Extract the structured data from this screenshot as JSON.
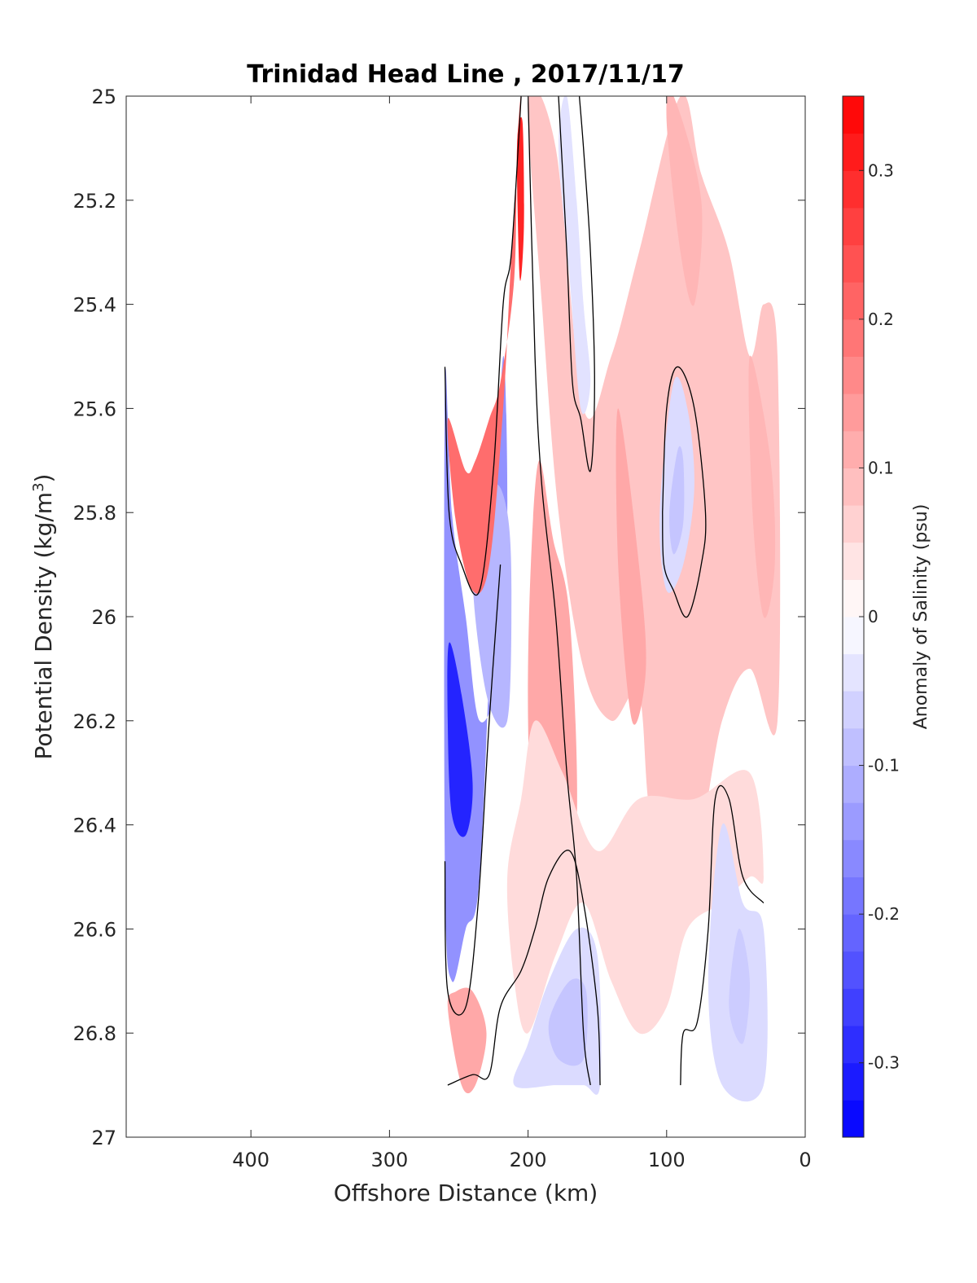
{
  "chart_data": {
    "type": "contour",
    "title": "Trinidad Head Line , 2017/11/17",
    "xlabel": "Offshore Distance (km)",
    "ylabel_main": "Potential Density (kg/m",
    "ylabel_sup": "3",
    "ylabel_end": ")",
    "xlim": [
      490,
      0
    ],
    "ylim": [
      25,
      27
    ],
    "x_reversed": true,
    "y_reversed": true,
    "xticks": [
      400,
      300,
      200,
      100,
      0
    ],
    "yticks": [
      25,
      25.2,
      25.4,
      25.6,
      25.8,
      26,
      26.2,
      26.4,
      26.6,
      26.8,
      27
    ],
    "colorbar": {
      "label": "Anomaly of Salinity (psu)",
      "range": [
        -0.35,
        0.35
      ],
      "step": 0.025,
      "ticks": [
        0.3,
        0.2,
        0.1,
        0,
        -0.1,
        -0.2,
        -0.3
      ],
      "tick_labels": [
        "0.3",
        "0.2",
        "0.1",
        "0",
        "-0.1",
        "-0.2",
        "-0.3"
      ],
      "colormap": "blue-white-red"
    },
    "stations_km": [
      260,
      250,
      240,
      230,
      220,
      210,
      200,
      190,
      180,
      170,
      160,
      150,
      140,
      130,
      120,
      110,
      100,
      90,
      80,
      70,
      60,
      50,
      40,
      30,
      20
    ],
    "regions": [
      {
        "value": -0.15,
        "points": [
          [
            260,
            25.55
          ],
          [
            255,
            25.8
          ],
          [
            245,
            26.0
          ],
          [
            235,
            26.2
          ],
          [
            220,
            26.1
          ],
          [
            215,
            25.8
          ],
          [
            218,
            25.5
          ],
          [
            225,
            25.9
          ],
          [
            235,
            26.5
          ],
          [
            245,
            26.6
          ],
          [
            255,
            26.7
          ],
          [
            260,
            26.5
          ]
        ]
      },
      {
        "value": -0.3,
        "points": [
          [
            257,
            26.05
          ],
          [
            248,
            26.15
          ],
          [
            240,
            26.32
          ],
          [
            245,
            26.42
          ],
          [
            255,
            26.38
          ],
          [
            258,
            26.2
          ]
        ]
      },
      {
        "value": -0.1,
        "points": [
          [
            240,
            25.9
          ],
          [
            230,
            26.15
          ],
          [
            215,
            26.2
          ],
          [
            212,
            25.95
          ],
          [
            215,
            25.8
          ],
          [
            225,
            25.75
          ]
        ]
      },
      {
        "value": 0.2,
        "points": [
          [
            258,
            25.62
          ],
          [
            245,
            25.72
          ],
          [
            238,
            25.7
          ],
          [
            228,
            25.62
          ],
          [
            220,
            25.55
          ],
          [
            210,
            25.35
          ],
          [
            208,
            25.1
          ],
          [
            205,
            25.0
          ],
          [
            212,
            25.3
          ],
          [
            218,
            25.6
          ],
          [
            228,
            25.9
          ],
          [
            240,
            25.95
          ],
          [
            252,
            25.82
          ]
        ]
      },
      {
        "value": 0.3,
        "points": [
          [
            208,
            25.1
          ],
          [
            206,
            25.35
          ],
          [
            203,
            25.25
          ],
          [
            204,
            25.05
          ]
        ]
      },
      {
        "value": 0.08,
        "points": [
          [
            200,
            25.0
          ],
          [
            190,
            25.4
          ],
          [
            178,
            25.8
          ],
          [
            160,
            26.1
          ],
          [
            140,
            26.2
          ],
          [
            120,
            26.15
          ],
          [
            110,
            26.4
          ],
          [
            80,
            26.45
          ],
          [
            60,
            26.2
          ],
          [
            40,
            26.1
          ],
          [
            20,
            26.2
          ],
          [
            20,
            25.5
          ],
          [
            30,
            25.4
          ],
          [
            40,
            25.5
          ],
          [
            55,
            25.3
          ],
          [
            75,
            25.15
          ],
          [
            90,
            25.0
          ],
          [
            120,
            25.3
          ],
          [
            140,
            25.5
          ],
          [
            160,
            25.6
          ],
          [
            180,
            25.1
          ]
        ]
      },
      {
        "value": 0.12,
        "points": [
          [
            192,
            25.7
          ],
          [
            182,
            25.85
          ],
          [
            170,
            26.0
          ],
          [
            165,
            26.4
          ],
          [
            180,
            26.55
          ],
          [
            195,
            26.5
          ],
          [
            200,
            26.2
          ],
          [
            198,
            25.9
          ]
        ]
      },
      {
        "value": 0.1,
        "points": [
          [
            95,
            25.0
          ],
          [
            75,
            25.2
          ],
          [
            80,
            25.4
          ],
          [
            90,
            25.3
          ],
          [
            100,
            25.05
          ]
        ]
      },
      {
        "value": 0.1,
        "points": [
          [
            40,
            25.5
          ],
          [
            25,
            25.7
          ],
          [
            22,
            25.9
          ],
          [
            30,
            26.0
          ],
          [
            38,
            25.8
          ]
        ]
      },
      {
        "value": 0.12,
        "points": [
          [
            135,
            25.6
          ],
          [
            120,
            25.9
          ],
          [
            115,
            26.1
          ],
          [
            125,
            26.2
          ],
          [
            135,
            25.9
          ]
        ]
      },
      {
        "value": 0.05,
        "points": [
          [
            215,
            26.5
          ],
          [
            210,
            26.7
          ],
          [
            200,
            26.8
          ],
          [
            180,
            26.65
          ],
          [
            160,
            26.55
          ],
          [
            140,
            26.7
          ],
          [
            120,
            26.8
          ],
          [
            100,
            26.75
          ],
          [
            85,
            26.6
          ],
          [
            60,
            26.55
          ],
          [
            40,
            26.5
          ],
          [
            30,
            26.5
          ],
          [
            40,
            26.3
          ],
          [
            80,
            26.35
          ],
          [
            120,
            26.35
          ],
          [
            150,
            26.45
          ],
          [
            175,
            26.3
          ],
          [
            195,
            26.2
          ],
          [
            205,
            26.35
          ]
        ]
      },
      {
        "value": 0.12,
        "points": [
          [
            258,
            26.75
          ],
          [
            248,
            26.9
          ],
          [
            238,
            26.9
          ],
          [
            230,
            26.8
          ],
          [
            240,
            26.72
          ],
          [
            252,
            26.72
          ]
        ]
      },
      {
        "value": -0.05,
        "points": [
          [
            200,
            26.82
          ],
          [
            185,
            26.7
          ],
          [
            165,
            26.6
          ],
          [
            150,
            26.65
          ],
          [
            148,
            26.9
          ],
          [
            160,
            26.9
          ],
          [
            180,
            26.9
          ],
          [
            210,
            26.9
          ]
        ]
      },
      {
        "value": -0.08,
        "points": [
          [
            185,
            26.78
          ],
          [
            170,
            26.7
          ],
          [
            158,
            26.72
          ],
          [
            160,
            26.85
          ],
          [
            178,
            26.85
          ]
        ]
      },
      {
        "value": -0.05,
        "points": [
          [
            60,
            26.4
          ],
          [
            45,
            26.55
          ],
          [
            30,
            26.6
          ],
          [
            30,
            26.9
          ],
          [
            60,
            26.9
          ],
          [
            70,
            26.7
          ]
        ]
      },
      {
        "value": -0.07,
        "points": [
          [
            48,
            26.6
          ],
          [
            40,
            26.7
          ],
          [
            45,
            26.82
          ],
          [
            55,
            26.75
          ]
        ]
      },
      {
        "value": -0.05,
        "points": [
          [
            95,
            25.55
          ],
          [
            105,
            25.8
          ],
          [
            100,
            25.95
          ],
          [
            88,
            25.9
          ],
          [
            80,
            25.75
          ],
          [
            85,
            25.6
          ]
        ]
      },
      {
        "value": -0.08,
        "points": [
          [
            92,
            25.68
          ],
          [
            98,
            25.8
          ],
          [
            95,
            25.88
          ],
          [
            88,
            25.82
          ],
          [
            88,
            25.7
          ]
        ]
      },
      {
        "value": -0.04,
        "points": [
          [
            172,
            25.0
          ],
          [
            165,
            25.2
          ],
          [
            160,
            25.4
          ],
          [
            155,
            25.55
          ],
          [
            162,
            25.6
          ],
          [
            170,
            25.35
          ],
          [
            178,
            25.1
          ]
        ]
      }
    ],
    "zero_contours": [
      [
        [
          260,
          25.52
        ],
        [
          257,
          25.8
        ],
        [
          248,
          25.9
        ],
        [
          235,
          25.95
        ],
        [
          225,
          25.72
        ],
        [
          218,
          25.4
        ],
        [
          212,
          25.3
        ],
        [
          205,
          25.0
        ]
      ],
      [
        [
          200,
          25.0
        ],
        [
          195,
          25.5
        ],
        [
          190,
          25.75
        ],
        [
          180,
          26.0
        ],
        [
          172,
          26.3
        ],
        [
          165,
          26.5
        ],
        [
          160,
          26.8
        ],
        [
          155,
          26.9
        ]
      ],
      [
        [
          178,
          25.0
        ],
        [
          172,
          25.3
        ],
        [
          168,
          25.55
        ],
        [
          162,
          25.62
        ],
        [
          155,
          25.72
        ],
        [
          152,
          25.55
        ],
        [
          155,
          25.3
        ],
        [
          160,
          25.1
        ],
        [
          163,
          25.0
        ]
      ],
      [
        [
          103,
          25.8
        ],
        [
          100,
          25.6
        ],
        [
          92,
          25.52
        ],
        [
          80,
          25.6
        ],
        [
          72,
          25.8
        ],
        [
          75,
          25.9
        ],
        [
          85,
          26.0
        ],
        [
          95,
          25.95
        ],
        [
          102,
          25.9
        ],
        [
          103,
          25.8
        ]
      ],
      [
        [
          260,
          26.47
        ],
        [
          258,
          26.72
        ],
        [
          245,
          26.75
        ],
        [
          236,
          26.55
        ],
        [
          228,
          26.2
        ],
        [
          220,
          25.9
        ]
      ],
      [
        [
          258,
          26.9
        ],
        [
          240,
          26.88
        ],
        [
          228,
          26.88
        ],
        [
          220,
          26.75
        ],
        [
          205,
          26.68
        ],
        [
          195,
          26.6
        ],
        [
          185,
          26.5
        ],
        [
          170,
          26.45
        ],
        [
          160,
          26.55
        ],
        [
          150,
          26.75
        ],
        [
          148,
          26.9
        ]
      ],
      [
        [
          90,
          26.9
        ],
        [
          88,
          26.8
        ],
        [
          78,
          26.78
        ],
        [
          70,
          26.6
        ],
        [
          65,
          26.35
        ],
        [
          55,
          26.35
        ],
        [
          45,
          26.5
        ],
        [
          30,
          26.55
        ]
      ]
    ]
  }
}
